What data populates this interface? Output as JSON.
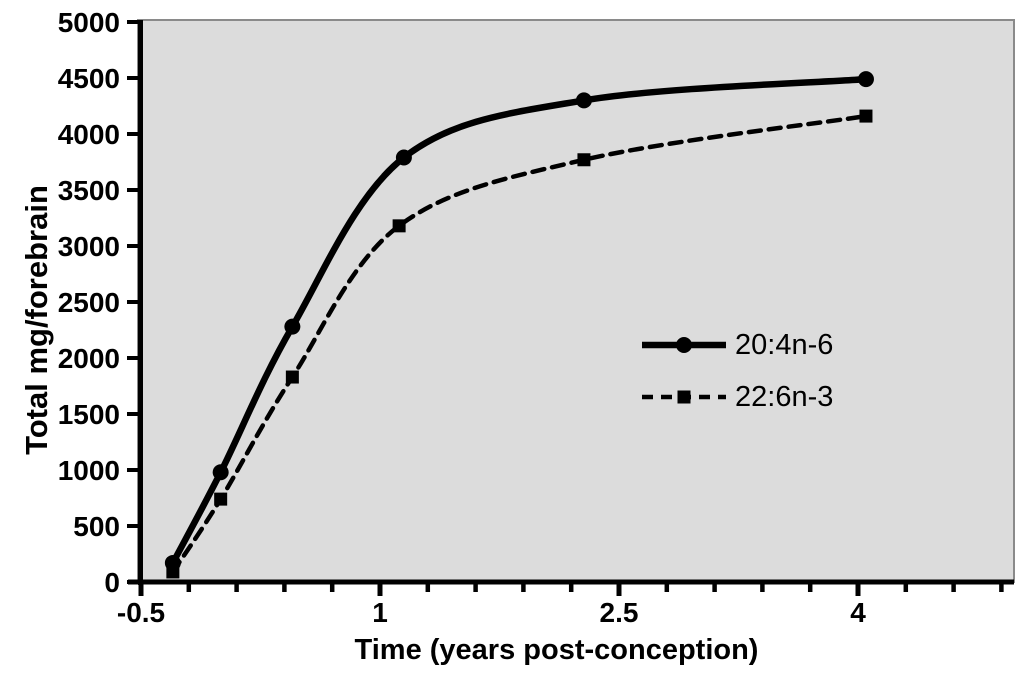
{
  "chart_data": {
    "type": "line",
    "title": "",
    "xlabel": "Time (years post-conception)",
    "ylabel": "Total mg/forebrain",
    "xlim": [
      -0.5,
      4.98
    ],
    "ylim": [
      0,
      5000
    ],
    "grid": false,
    "plot_bg_color": "#dcdcdc",
    "plot_border_color": "#8a8a8a",
    "axis_color": "#000000",
    "x_major_ticks": [
      {
        "value": -0.5,
        "label": "-0.5"
      },
      {
        "value": 1,
        "label": "1"
      },
      {
        "value": 2.5,
        "label": "2.5"
      },
      {
        "value": 4,
        "label": "4"
      }
    ],
    "x_minor_tick_start": -0.5,
    "x_minor_tick_step": 0.3,
    "x_minor_tick_count": 19,
    "y_ticks": [
      {
        "value": 0,
        "label": "0"
      },
      {
        "value": 500,
        "label": "500"
      },
      {
        "value": 1000,
        "label": "1000"
      },
      {
        "value": 1500,
        "label": "1500"
      },
      {
        "value": 2000,
        "label": "2000"
      },
      {
        "value": 2500,
        "label": "2500"
      },
      {
        "value": 3000,
        "label": "3000"
      },
      {
        "value": 3500,
        "label": "3500"
      },
      {
        "value": 4000,
        "label": "4000"
      },
      {
        "value": 4500,
        "label": "4500"
      },
      {
        "value": 5000,
        "label": "5000"
      }
    ],
    "legend_position": "middle-right",
    "series": [
      {
        "name": "20:4n-6",
        "marker": "circle",
        "line_style": "solid",
        "line_width": 6.5,
        "color": "#000000",
        "x": [
          -0.3,
          0.0,
          0.45,
          1.15,
          2.28,
          4.05
        ],
        "y": [
          170,
          980,
          2280,
          3790,
          4300,
          4490
        ]
      },
      {
        "name": "22:6n-3",
        "marker": "square",
        "line_style": "dashed",
        "line_width": 4.5,
        "color": "#000000",
        "x": [
          -0.3,
          0.0,
          0.45,
          1.12,
          2.28,
          4.05
        ],
        "y": [
          90,
          740,
          1830,
          3180,
          3770,
          4160
        ]
      }
    ]
  }
}
